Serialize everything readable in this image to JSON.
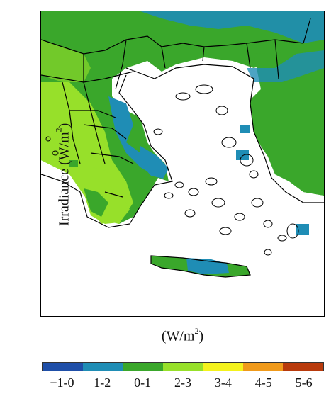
{
  "axis": {
    "ylabel_main": "Irradiance (W/m",
    "ylabel_sup": "2",
    "ylabel_end": ")",
    "xlabel_main": "(W/m",
    "xlabel_sup": "2",
    "xlabel_end": ")"
  },
  "legend": {
    "items": [
      {
        "label": "−1-0",
        "color": "#1f4fa8"
      },
      {
        "label": "1-2",
        "color": "#1f8db5"
      },
      {
        "label": "0-1",
        "color": "#3aa72b"
      },
      {
        "label": "2-3",
        "color": "#97e02a"
      },
      {
        "label": "3-4",
        "color": "#f4f21c"
      },
      {
        "label": "4-5",
        "color": "#f09a1b"
      },
      {
        "label": "5-6",
        "color": "#b83a0c"
      }
    ]
  }
}
